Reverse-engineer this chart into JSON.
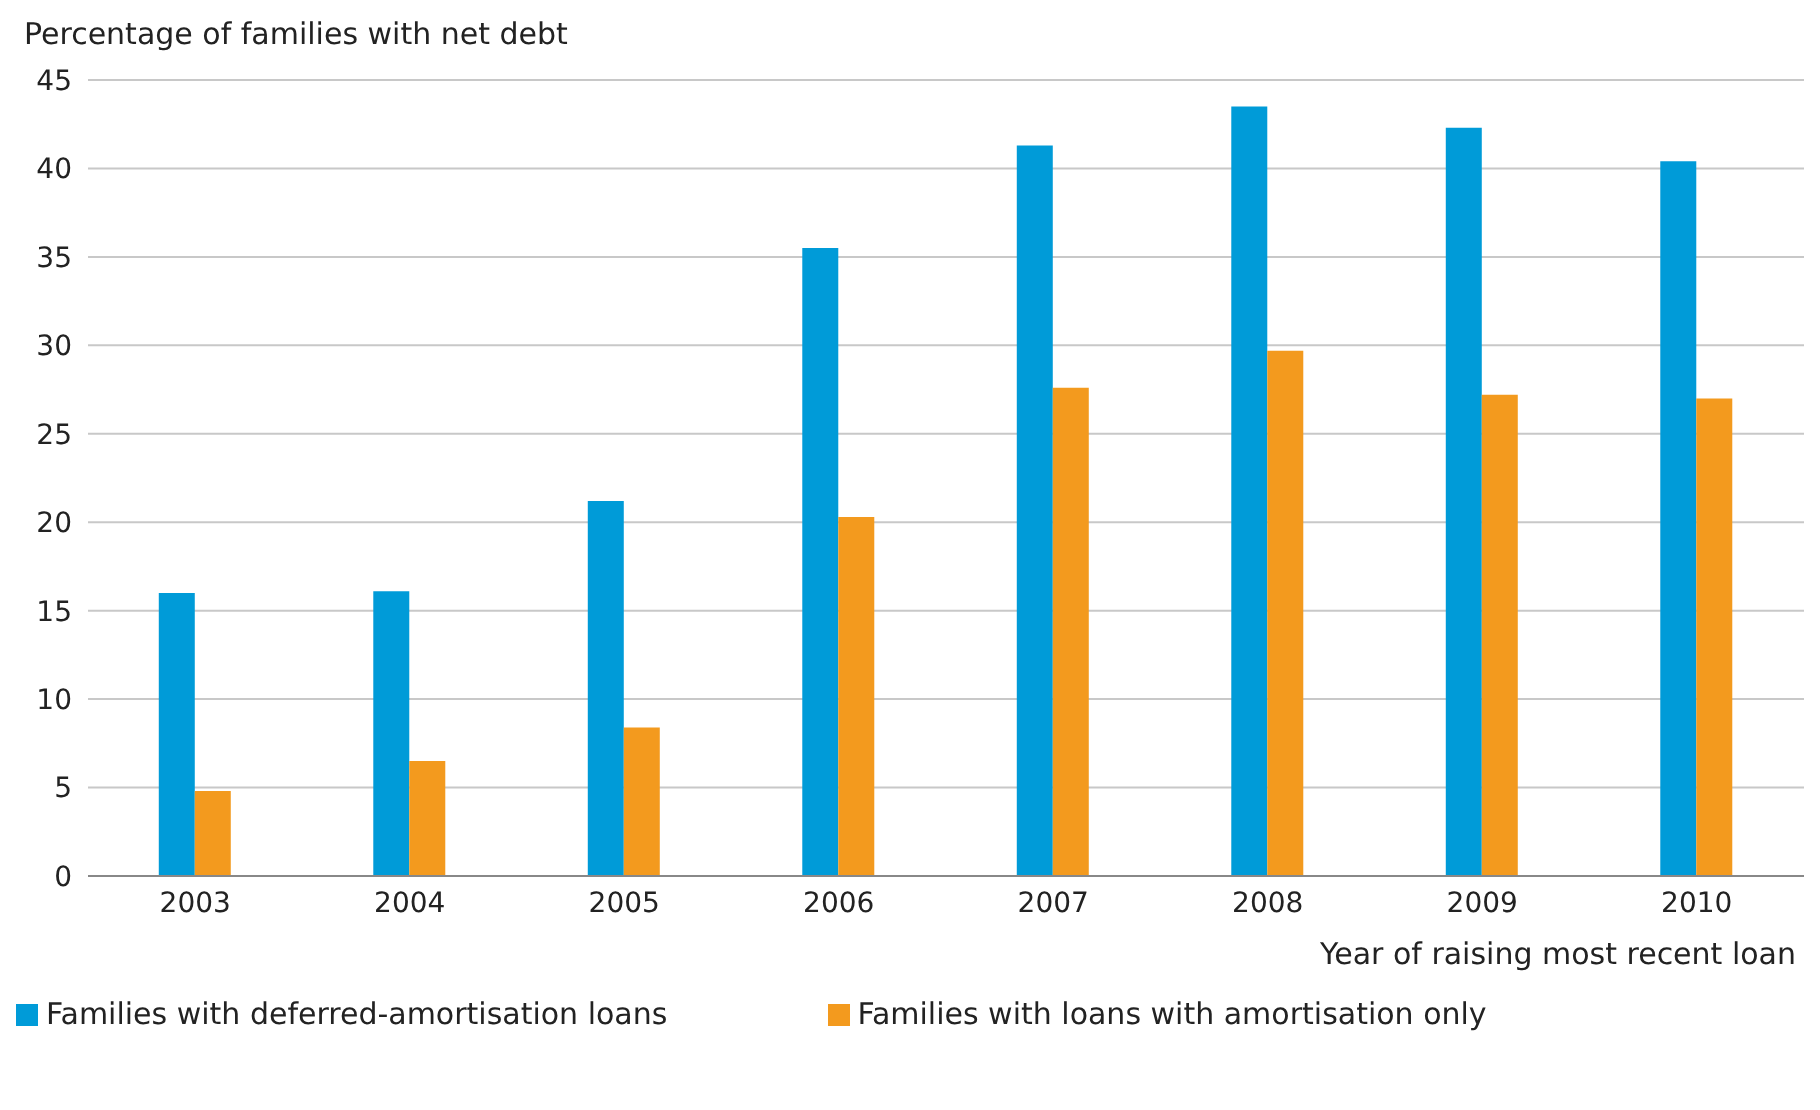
{
  "chart_data": {
    "type": "bar",
    "ylabel": "Percentage of families with net debt",
    "xlabel": "Year of raising most recent loan",
    "categories": [
      "2003",
      "2004",
      "2005",
      "2006",
      "2007",
      "2008",
      "2009",
      "2010"
    ],
    "series": [
      {
        "name": "Families with deferred-amortisation loans",
        "color": "#009bd8",
        "values": [
          16,
          16.1,
          21.2,
          35.5,
          41.3,
          43.5,
          42.3,
          40.4
        ]
      },
      {
        "name": "Families with loans with amortisation only",
        "color": "#f39a1e",
        "values": [
          4.8,
          6.5,
          8.4,
          20.3,
          27.6,
          29.7,
          27.2,
          27.0
        ]
      }
    ],
    "ylim": [
      0,
      45
    ],
    "yticks": [
      0,
      5,
      10,
      15,
      20,
      25,
      30,
      35,
      40,
      45
    ],
    "grid": "y",
    "legend": "bottom"
  }
}
